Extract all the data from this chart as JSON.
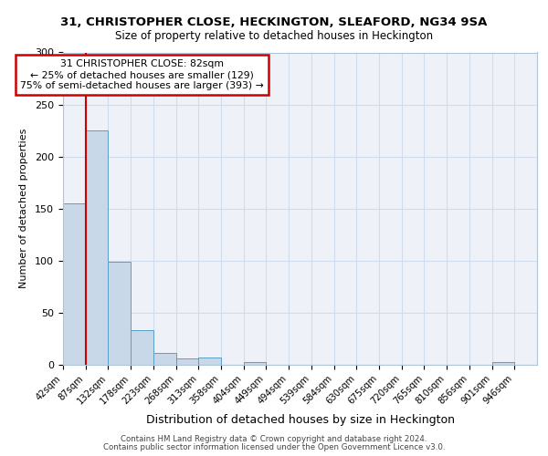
{
  "title_line1": "31, CHRISTOPHER CLOSE, HECKINGTON, SLEAFORD, NG34 9SA",
  "title_line2": "Size of property relative to detached houses in Heckington",
  "xlabel": "Distribution of detached houses by size in Heckington",
  "ylabel": "Number of detached properties",
  "bin_labels": [
    "42sqm",
    "87sqm",
    "132sqm",
    "178sqm",
    "223sqm",
    "268sqm",
    "313sqm",
    "358sqm",
    "404sqm",
    "449sqm",
    "494sqm",
    "539sqm",
    "584sqm",
    "630sqm",
    "675sqm",
    "720sqm",
    "765sqm",
    "810sqm",
    "856sqm",
    "901sqm",
    "946sqm"
  ],
  "bar_heights": [
    155,
    225,
    99,
    33,
    11,
    6,
    7,
    0,
    3,
    0,
    0,
    0,
    0,
    0,
    0,
    0,
    0,
    0,
    0,
    3,
    0
  ],
  "bar_color": "#c8d8e8",
  "bar_edge_color": "#5a9fc8",
  "red_line_x": 1,
  "property_label": "31 CHRISTOPHER CLOSE: 82sqm",
  "annotation_line2": "← 25% of detached houses are smaller (129)",
  "annotation_line3": "75% of semi-detached houses are larger (393) →",
  "red_line_color": "#cc0000",
  "annotation_box_color": "#cc0000",
  "grid_color": "#d0dcec",
  "bg_color": "#eef2f8",
  "ylim": [
    0,
    300
  ],
  "yticks": [
    0,
    50,
    100,
    150,
    200,
    250,
    300
  ],
  "footnote_line1": "Contains HM Land Registry data © Crown copyright and database right 2024.",
  "footnote_line2": "Contains public sector information licensed under the Open Government Licence v3.0."
}
